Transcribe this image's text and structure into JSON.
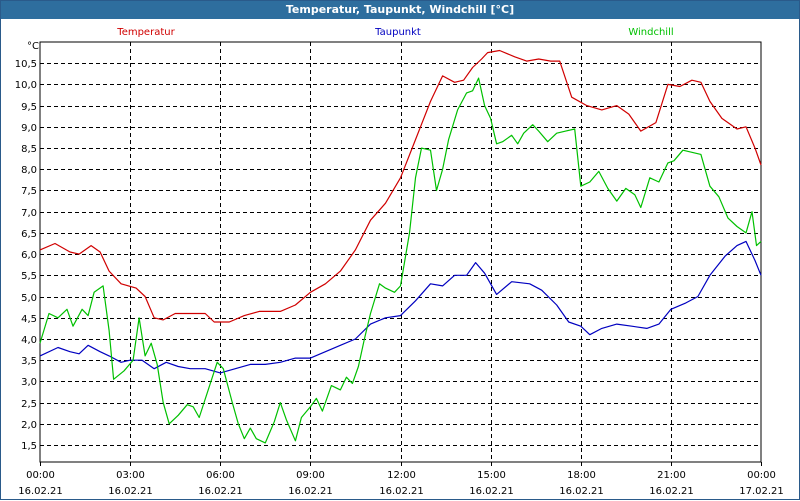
{
  "window": {
    "title": "Temperatur, Taupunkt, Windchill [°C]"
  },
  "chart_data": {
    "type": "line",
    "title": "Temperatur, Taupunkt, Windchill [°C]",
    "ylabel": "°C",
    "xlabel": "",
    "ylim": [
      1.1,
      11.0
    ],
    "xlim": [
      0,
      24
    ],
    "grid": true,
    "legend_position": "top",
    "y_ticks": [
      "1,5",
      "2,0",
      "2,5",
      "3,0",
      "3,5",
      "4,0",
      "4,5",
      "5,0",
      "5,5",
      "6,0",
      "6,5",
      "7,0",
      "7,5",
      "8,0",
      "8,5",
      "9,0",
      "9,5",
      "10,0",
      "10,5"
    ],
    "x_ticks": [
      {
        "time": "00:00",
        "date": "16.02.21",
        "hour": 0
      },
      {
        "time": "03:00",
        "date": "16.02.21",
        "hour": 3
      },
      {
        "time": "06:00",
        "date": "16.02.21",
        "hour": 6
      },
      {
        "time": "09:00",
        "date": "16.02.21",
        "hour": 9
      },
      {
        "time": "12:00",
        "date": "16.02.21",
        "hour": 12
      },
      {
        "time": "15:00",
        "date": "16.02.21",
        "hour": 15
      },
      {
        "time": "18:00",
        "date": "16.02.21",
        "hour": 18
      },
      {
        "time": "21:00",
        "date": "16.02.21",
        "hour": 21
      },
      {
        "time": "00:00",
        "date": "17.02.21",
        "hour": 24
      }
    ],
    "series": [
      {
        "name": "Temperatur",
        "color": "#d00000",
        "points": [
          [
            0,
            6.1
          ],
          [
            0.5,
            6.25
          ],
          [
            1,
            6.05
          ],
          [
            1.3,
            6.0
          ],
          [
            1.7,
            6.2
          ],
          [
            2,
            6.05
          ],
          [
            2.3,
            5.6
          ],
          [
            2.7,
            5.3
          ],
          [
            3.2,
            5.2
          ],
          [
            3.5,
            5.0
          ],
          [
            3.8,
            4.5
          ],
          [
            4.1,
            4.45
          ],
          [
            4.5,
            4.6
          ],
          [
            5,
            4.6
          ],
          [
            5.5,
            4.6
          ],
          [
            5.8,
            4.4
          ],
          [
            6.3,
            4.4
          ],
          [
            6.8,
            4.55
          ],
          [
            7.3,
            4.65
          ],
          [
            8,
            4.65
          ],
          [
            8.5,
            4.8
          ],
          [
            9,
            5.1
          ],
          [
            9.5,
            5.3
          ],
          [
            10,
            5.6
          ],
          [
            10.5,
            6.1
          ],
          [
            11,
            6.8
          ],
          [
            11.5,
            7.2
          ],
          [
            12,
            7.8
          ],
          [
            12.5,
            8.7
          ],
          [
            13,
            9.6
          ],
          [
            13.4,
            10.2
          ],
          [
            13.8,
            10.05
          ],
          [
            14.1,
            10.1
          ],
          [
            14.4,
            10.4
          ],
          [
            14.7,
            10.6
          ],
          [
            14.9,
            10.75
          ],
          [
            15.3,
            10.8
          ],
          [
            15.8,
            10.65
          ],
          [
            16.2,
            10.55
          ],
          [
            16.6,
            10.6
          ],
          [
            17,
            10.55
          ],
          [
            17.3,
            10.55
          ],
          [
            17.7,
            9.7
          ],
          [
            18.2,
            9.5
          ],
          [
            18.7,
            9.4
          ],
          [
            19.2,
            9.5
          ],
          [
            19.6,
            9.3
          ],
          [
            20,
            8.9
          ],
          [
            20.5,
            9.1
          ],
          [
            20.9,
            10.0
          ],
          [
            21.3,
            9.95
          ],
          [
            21.7,
            10.1
          ],
          [
            22,
            10.05
          ],
          [
            22.3,
            9.6
          ],
          [
            22.7,
            9.2
          ],
          [
            23.2,
            8.95
          ],
          [
            23.5,
            9.0
          ],
          [
            23.8,
            8.5
          ],
          [
            24,
            8.1
          ]
        ]
      },
      {
        "name": "Taupunkt",
        "color": "#0000c0",
        "points": [
          [
            0,
            3.6
          ],
          [
            0.6,
            3.8
          ],
          [
            1,
            3.7
          ],
          [
            1.3,
            3.65
          ],
          [
            1.6,
            3.85
          ],
          [
            2,
            3.7
          ],
          [
            2.3,
            3.6
          ],
          [
            2.7,
            3.45
          ],
          [
            3,
            3.5
          ],
          [
            3.4,
            3.5
          ],
          [
            3.8,
            3.3
          ],
          [
            4.2,
            3.45
          ],
          [
            4.6,
            3.35
          ],
          [
            5,
            3.3
          ],
          [
            5.5,
            3.3
          ],
          [
            6,
            3.2
          ],
          [
            6.5,
            3.3
          ],
          [
            7,
            3.4
          ],
          [
            7.5,
            3.4
          ],
          [
            8,
            3.45
          ],
          [
            8.5,
            3.55
          ],
          [
            9,
            3.55
          ],
          [
            9.5,
            3.7
          ],
          [
            10,
            3.85
          ],
          [
            10.5,
            4.0
          ],
          [
            11,
            4.35
          ],
          [
            11.5,
            4.5
          ],
          [
            12,
            4.55
          ],
          [
            12.5,
            4.9
          ],
          [
            13,
            5.3
          ],
          [
            13.4,
            5.25
          ],
          [
            13.8,
            5.5
          ],
          [
            14.2,
            5.5
          ],
          [
            14.5,
            5.8
          ],
          [
            14.8,
            5.55
          ],
          [
            15.2,
            5.05
          ],
          [
            15.7,
            5.35
          ],
          [
            16.3,
            5.3
          ],
          [
            16.7,
            5.15
          ],
          [
            17.2,
            4.8
          ],
          [
            17.6,
            4.4
          ],
          [
            18,
            4.3
          ],
          [
            18.3,
            4.1
          ],
          [
            18.7,
            4.25
          ],
          [
            19.2,
            4.35
          ],
          [
            19.7,
            4.3
          ],
          [
            20.2,
            4.25
          ],
          [
            20.6,
            4.35
          ],
          [
            21,
            4.7
          ],
          [
            21.5,
            4.85
          ],
          [
            21.9,
            5.0
          ],
          [
            22.3,
            5.5
          ],
          [
            22.8,
            5.95
          ],
          [
            23.2,
            6.2
          ],
          [
            23.5,
            6.3
          ],
          [
            23.8,
            5.85
          ],
          [
            24,
            5.5
          ]
        ]
      },
      {
        "name": "Windchill",
        "color": "#00c000",
        "points": [
          [
            0,
            3.9
          ],
          [
            0.3,
            4.6
          ],
          [
            0.6,
            4.5
          ],
          [
            0.9,
            4.7
          ],
          [
            1.1,
            4.3
          ],
          [
            1.4,
            4.7
          ],
          [
            1.6,
            4.55
          ],
          [
            1.8,
            5.1
          ],
          [
            2.1,
            5.25
          ],
          [
            2.3,
            4.2
          ],
          [
            2.45,
            3.05
          ],
          [
            2.8,
            3.25
          ],
          [
            3.1,
            3.5
          ],
          [
            3.3,
            4.5
          ],
          [
            3.5,
            3.6
          ],
          [
            3.7,
            3.9
          ],
          [
            3.9,
            3.4
          ],
          [
            4.1,
            2.5
          ],
          [
            4.3,
            2.0
          ],
          [
            4.6,
            2.2
          ],
          [
            4.9,
            2.45
          ],
          [
            5.1,
            2.4
          ],
          [
            5.3,
            2.15
          ],
          [
            5.6,
            2.8
          ],
          [
            5.9,
            3.45
          ],
          [
            6.1,
            3.3
          ],
          [
            6.4,
            2.5
          ],
          [
            6.6,
            2.0
          ],
          [
            6.8,
            1.65
          ],
          [
            7,
            1.9
          ],
          [
            7.2,
            1.65
          ],
          [
            7.5,
            1.55
          ],
          [
            7.8,
            2.05
          ],
          [
            8,
            2.5
          ],
          [
            8.2,
            2.1
          ],
          [
            8.5,
            1.6
          ],
          [
            8.7,
            2.15
          ],
          [
            9,
            2.4
          ],
          [
            9.2,
            2.6
          ],
          [
            9.4,
            2.3
          ],
          [
            9.7,
            2.9
          ],
          [
            10,
            2.8
          ],
          [
            10.2,
            3.1
          ],
          [
            10.4,
            2.95
          ],
          [
            10.6,
            3.35
          ],
          [
            10.8,
            4.0
          ],
          [
            11,
            4.6
          ],
          [
            11.3,
            5.3
          ],
          [
            11.5,
            5.2
          ],
          [
            11.8,
            5.1
          ],
          [
            12,
            5.25
          ],
          [
            12.3,
            6.5
          ],
          [
            12.5,
            7.8
          ],
          [
            12.7,
            8.5
          ],
          [
            13,
            8.45
          ],
          [
            13.2,
            7.5
          ],
          [
            13.4,
            8.0
          ],
          [
            13.6,
            8.7
          ],
          [
            13.9,
            9.4
          ],
          [
            14.2,
            9.8
          ],
          [
            14.4,
            9.85
          ],
          [
            14.6,
            10.15
          ],
          [
            14.8,
            9.5
          ],
          [
            15,
            9.2
          ],
          [
            15.2,
            8.6
          ],
          [
            15.4,
            8.65
          ],
          [
            15.7,
            8.8
          ],
          [
            15.9,
            8.6
          ],
          [
            16.1,
            8.85
          ],
          [
            16.4,
            9.05
          ],
          [
            16.6,
            8.9
          ],
          [
            16.9,
            8.65
          ],
          [
            17.2,
            8.85
          ],
          [
            17.5,
            8.9
          ],
          [
            17.8,
            8.95
          ],
          [
            18,
            7.6
          ],
          [
            18.3,
            7.7
          ],
          [
            18.6,
            7.95
          ],
          [
            18.9,
            7.55
          ],
          [
            19.2,
            7.25
          ],
          [
            19.5,
            7.55
          ],
          [
            19.8,
            7.4
          ],
          [
            20,
            7.1
          ],
          [
            20.3,
            7.8
          ],
          [
            20.6,
            7.7
          ],
          [
            20.9,
            8.15
          ],
          [
            21.1,
            8.2
          ],
          [
            21.4,
            8.45
          ],
          [
            21.7,
            8.4
          ],
          [
            22,
            8.35
          ],
          [
            22.3,
            7.6
          ],
          [
            22.6,
            7.35
          ],
          [
            22.9,
            6.85
          ],
          [
            23.2,
            6.65
          ],
          [
            23.5,
            6.5
          ],
          [
            23.7,
            7.0
          ],
          [
            23.85,
            6.2
          ],
          [
            24,
            6.3
          ]
        ]
      }
    ]
  }
}
